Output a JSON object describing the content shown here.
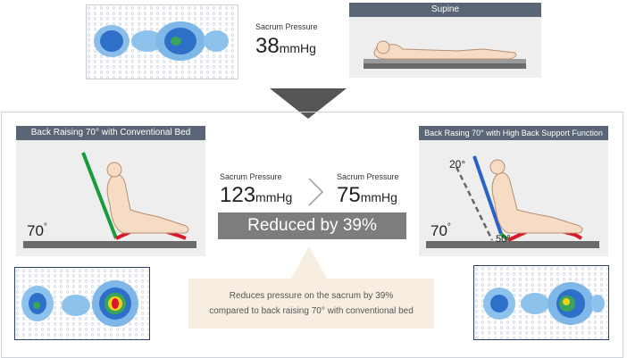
{
  "top": {
    "sacrum_label": "Sacrum Pressure",
    "sacrum_value": "38",
    "unit": "mmHg",
    "supine_title": "Supine"
  },
  "left_panel": {
    "title": "Back Raising 70° with Conventional Bed",
    "angle": "70",
    "angle_symbol": "°"
  },
  "middle": {
    "before_label": "Sacrum Pressure",
    "before_value": "123",
    "after_label": "Sacrum Pressure",
    "after_value": "75",
    "unit": "mmHg",
    "reduced_text": "Reduced by 39%",
    "note_line1": "Reduces pressure on the sacrum by 39%",
    "note_line2": "compared to back raising 70° with conventional bed"
  },
  "right_panel": {
    "title": "Back Rasing 70° with High Back Support Function",
    "angle": "70",
    "angle_symbol": "°",
    "label_20": "20°",
    "label_50": "50°"
  },
  "colors": {
    "title_bar": "#5a6675",
    "reduced_bar": "#7d7d7d",
    "note_bg": "#f7ede1",
    "red": "#d7192b",
    "green": "#1a9c3c",
    "blue": "#2a62c9",
    "bed": "#6b6b6b"
  }
}
